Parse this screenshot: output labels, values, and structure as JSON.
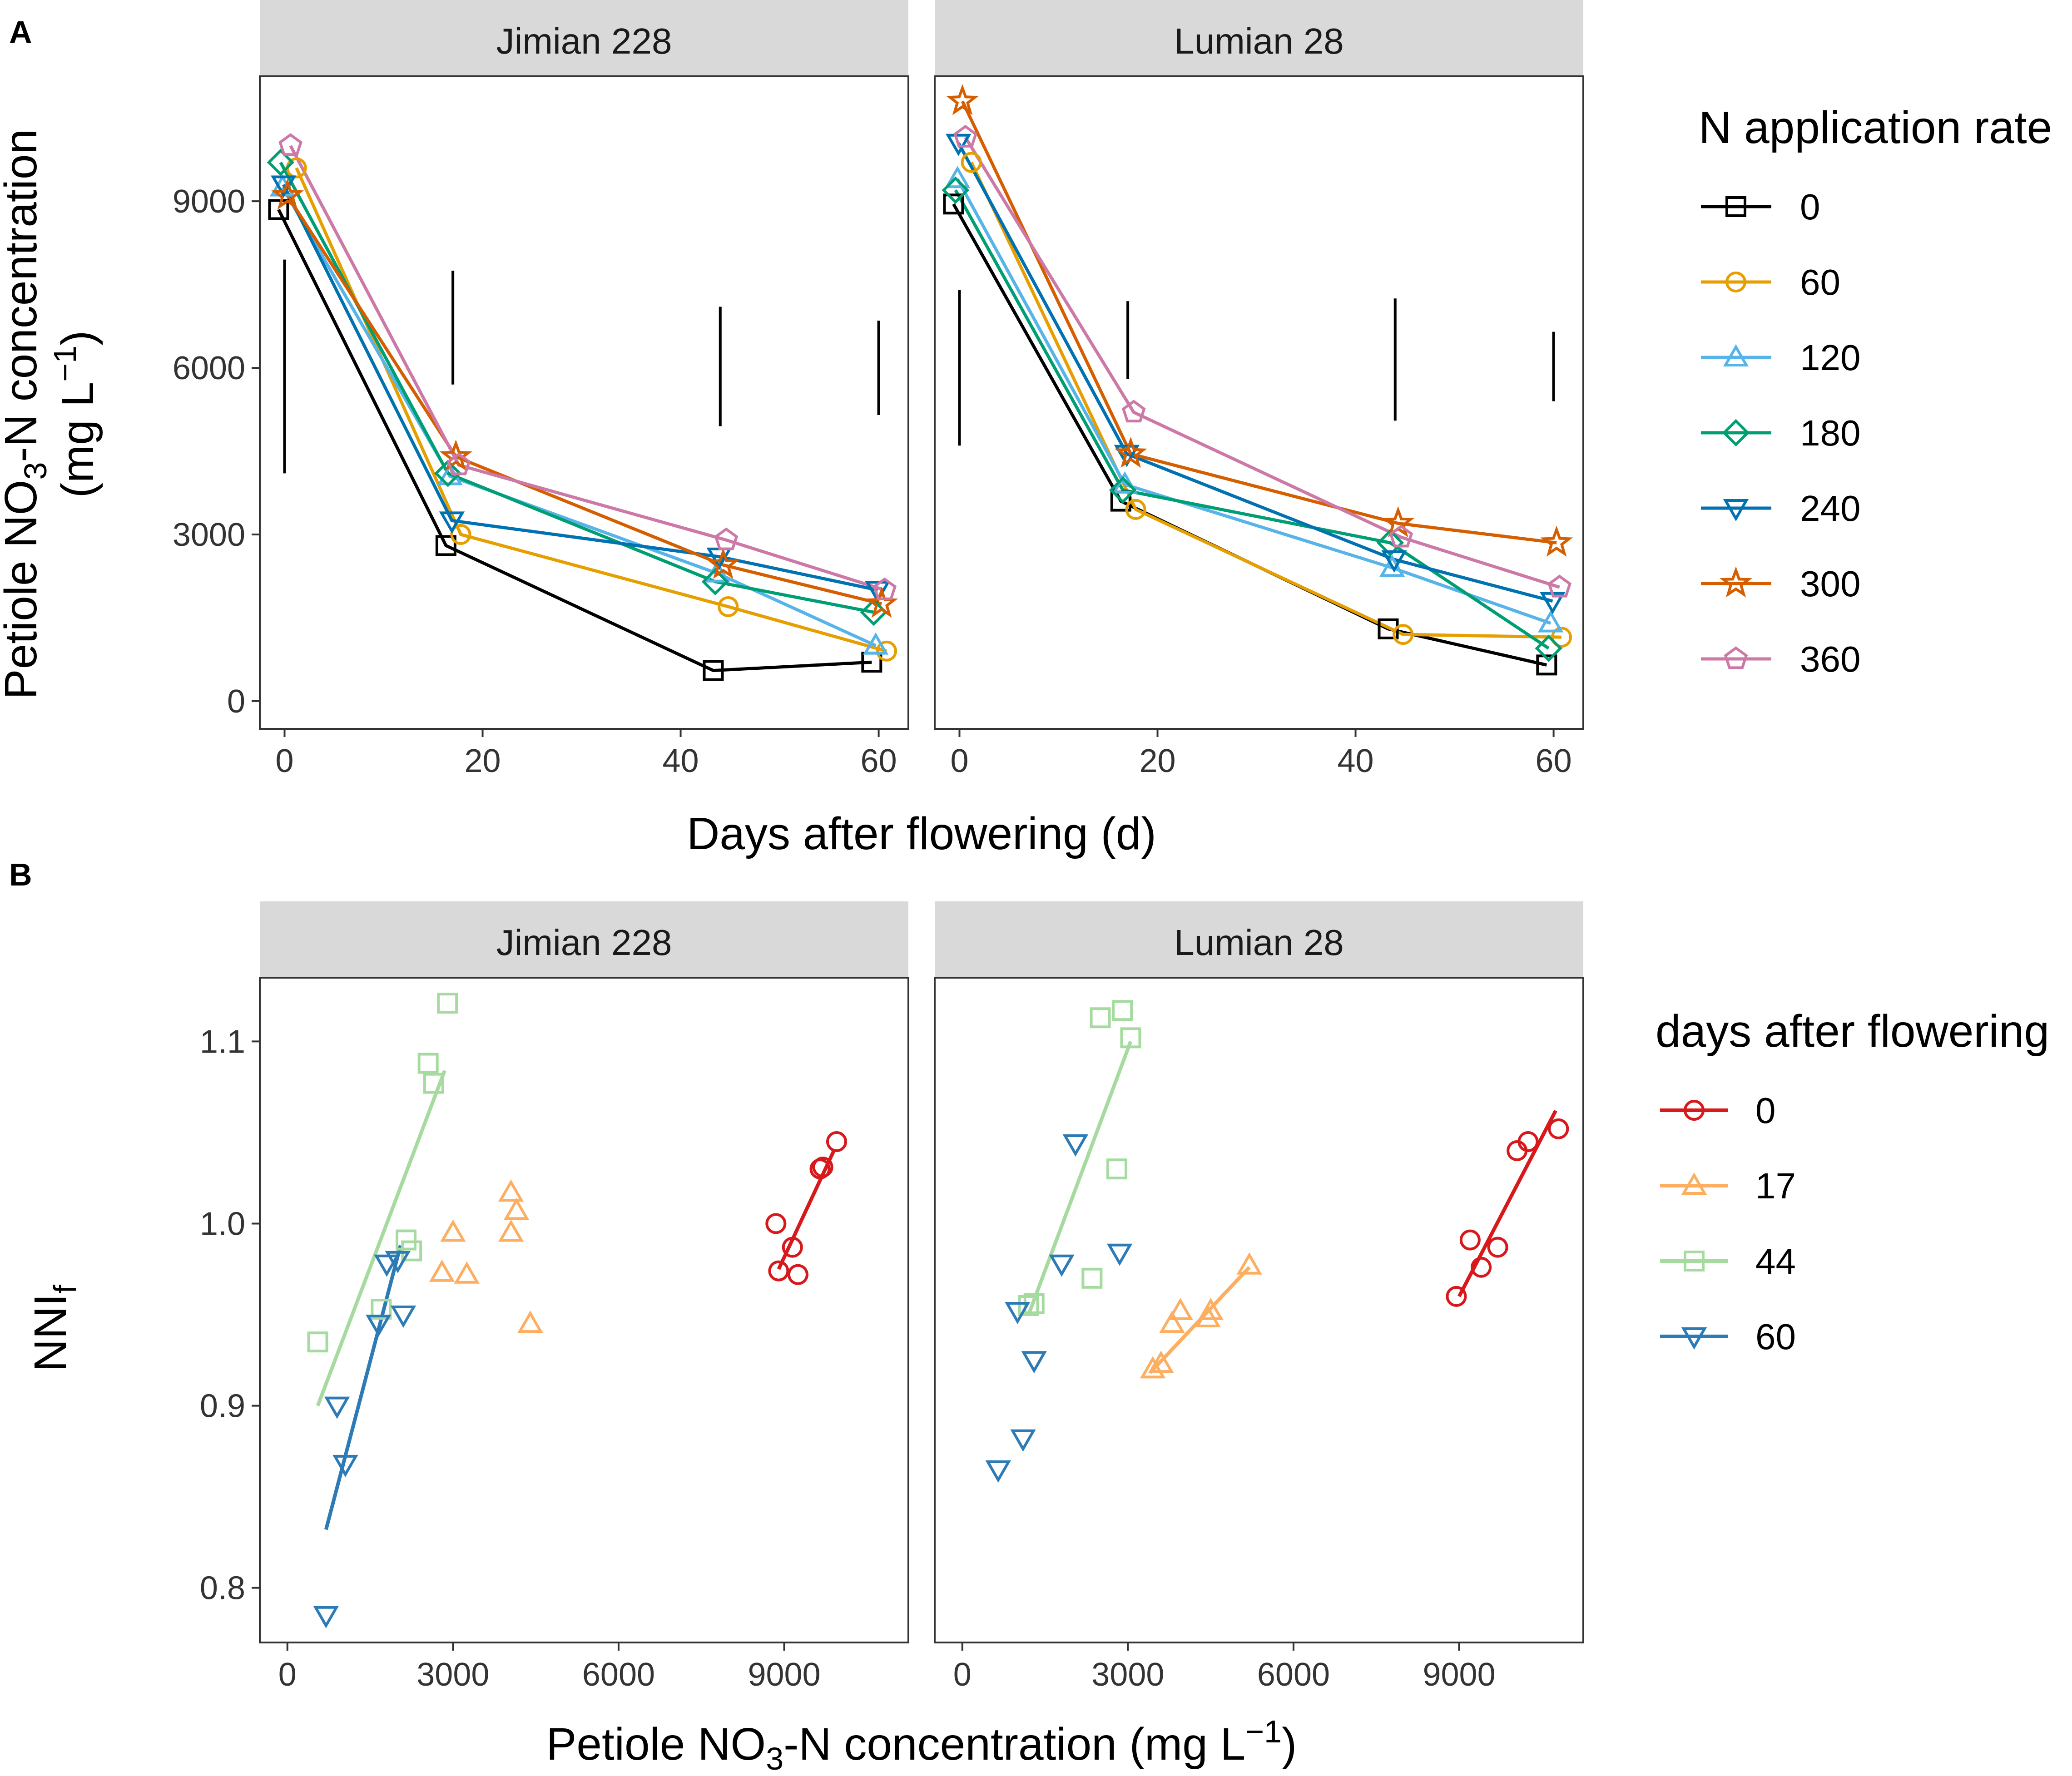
{
  "panels": {
    "a": {
      "letter": "A",
      "facets": [
        "Jimian 228",
        "Lumian 28"
      ],
      "y_title_main": "Petiole NO",
      "y_title_sub": "3",
      "y_title_rest": "-N concentration",
      "y_title_unit": "(mg L",
      "y_title_unit_sup": "−1",
      "y_title_unit_close": ")",
      "x_title": "Days after flowering (d)",
      "legend_title": "N application rate"
    },
    "b": {
      "letter": "B",
      "facets": [
        "Jimian 228",
        "Lumian 28"
      ],
      "y_title_main": "NNI",
      "y_title_sub": "f",
      "x_title_main": "Petiole NO",
      "x_title_sub": "3",
      "x_title_rest": "-N concentration (mg L",
      "x_title_sup": "−1",
      "x_title_close": ")",
      "legend_title": "days after flowering"
    }
  },
  "chart_data": [
    {
      "type": "line",
      "title": "",
      "xlabel": "Days after flowering (d)",
      "ylabel": "Petiole NO3-N concentration (mg L−1)",
      "xlim": [
        -2.5,
        63
      ],
      "ylim": [
        -500,
        11250
      ],
      "xticks": [
        0,
        20,
        40,
        60
      ],
      "yticks": [
        0,
        3000,
        6000,
        9000
      ],
      "legend_title": "N application rate",
      "facets": [
        {
          "name": "Jimian 228",
          "x": [
            0,
            17,
            44,
            60
          ],
          "error_bars": [
            {
              "x": 0,
              "low": 4100,
              "high": 7950
            },
            {
              "x": 17,
              "low": 5700,
              "high": 7750
            },
            {
              "x": 44,
              "low": 4950,
              "high": 7100
            },
            {
              "x": 60,
              "low": 5150,
              "high": 6850
            }
          ],
          "series": [
            {
              "name": "0",
              "color": "#000000",
              "shape": "square",
              "x": [
                -0.6,
                16.3,
                43.3,
                59.3
              ],
              "values": [
                8850,
                2800,
                550,
                700
              ]
            },
            {
              "name": "60",
              "color": "#E69F00",
              "shape": "circle",
              "x": [
                1.2,
                17.8,
                44.8,
                60.8
              ],
              "values": [
                9600,
                3000,
                1700,
                900
              ]
            },
            {
              "name": "120",
              "color": "#56B4E9",
              "shape": "triangle-up",
              "x": [
                -0.2,
                16.7,
                43.7,
                59.7
              ],
              "values": [
                9250,
                4050,
                2300,
                1000
              ]
            },
            {
              "name": "180",
              "color": "#009E73",
              "shape": "diamond",
              "x": [
                -0.4,
                16.5,
                43.5,
                59.5
              ],
              "values": [
                9700,
                4100,
                2150,
                1600
              ]
            },
            {
              "name": "240",
              "color": "#0072B2",
              "shape": "triangle-down",
              "x": [
                -0.1,
                16.9,
                43.9,
                59.9
              ],
              "values": [
                9300,
                3250,
                2600,
                2000
              ]
            },
            {
              "name": "300",
              "color": "#D55E00",
              "shape": "star",
              "x": [
                0.3,
                17.3,
                44.3,
                60.3
              ],
              "values": [
                9100,
                4400,
                2450,
                1750
              ]
            },
            {
              "name": "360",
              "color": "#CC79A7",
              "shape": "pentagon",
              "x": [
                0.6,
                17.6,
                44.6,
                60.6
              ],
              "values": [
                10000,
                4250,
                2900,
                2000
              ]
            }
          ]
        },
        {
          "name": "Lumian 28",
          "x": [
            0,
            17,
            44,
            60
          ],
          "error_bars": [
            {
              "x": 0,
              "low": 4600,
              "high": 7400
            },
            {
              "x": 17,
              "low": 5800,
              "high": 7200
            },
            {
              "x": 44,
              "low": 5050,
              "high": 7250
            },
            {
              "x": 60,
              "low": 5400,
              "high": 6650
            }
          ],
          "series": [
            {
              "name": "0",
              "color": "#000000",
              "shape": "square",
              "x": [
                -0.6,
                16.3,
                43.3,
                59.3
              ],
              "values": [
                8950,
                3600,
                1300,
                650
              ]
            },
            {
              "name": "60",
              "color": "#E69F00",
              "shape": "circle",
              "x": [
                1.2,
                17.8,
                44.8,
                60.8
              ],
              "values": [
                9700,
                3450,
                1200,
                1150
              ]
            },
            {
              "name": "120",
              "color": "#56B4E9",
              "shape": "triangle-up",
              "x": [
                -0.2,
                16.7,
                43.7,
                59.7
              ],
              "values": [
                9400,
                3900,
                2400,
                1400
              ]
            },
            {
              "name": "180",
              "color": "#009E73",
              "shape": "diamond",
              "x": [
                -0.4,
                16.5,
                43.5,
                59.5
              ],
              "values": [
                9200,
                3800,
                2850,
                950
              ]
            },
            {
              "name": "240",
              "color": "#0072B2",
              "shape": "triangle-down",
              "x": [
                -0.1,
                16.9,
                43.9,
                59.9
              ],
              "values": [
                10050,
                4450,
                2550,
                1800
              ]
            },
            {
              "name": "300",
              "color": "#D55E00",
              "shape": "star",
              "x": [
                0.3,
                17.3,
                44.3,
                60.3
              ],
              "values": [
                10800,
                4450,
                3200,
                2850
              ]
            },
            {
              "name": "360",
              "color": "#CC79A7",
              "shape": "pentagon",
              "x": [
                0.6,
                17.6,
                44.6,
                60.6
              ],
              "values": [
                10150,
                5200,
                2950,
                2050
              ]
            }
          ]
        }
      ]
    },
    {
      "type": "scatter",
      "title": "",
      "xlabel": "Petiole NO3-N concentration (mg L−1)",
      "ylabel": "NNIf",
      "xlim": [
        -500,
        11250
      ],
      "ylim": [
        0.77,
        1.135
      ],
      "xticks": [
        0,
        3000,
        6000,
        9000
      ],
      "yticks": [
        0.8,
        0.9,
        1.0,
        1.1
      ],
      "legend_title": "days after flowering",
      "facets": [
        {
          "name": "Jimian 228",
          "series": [
            {
              "name": "0",
              "color": "#D7191C",
              "shape": "circle",
              "x": [
                8850,
                8900,
                9250,
                9150,
                9650,
                9700,
                9950
              ],
              "y": [
                1.0,
                0.974,
                0.972,
                0.987,
                1.03,
                1.031,
                1.045
              ],
              "fit": {
                "x": [
                  8900,
                  9900
                ],
                "y": [
                  0.975,
                  1.04
                ]
              }
            },
            {
              "name": "17",
              "color": "#FDAE61",
              "shape": "triangle-up",
              "x": [
                2800,
                3000,
                3250,
                4050,
                4050,
                4150,
                4400
              ],
              "y": [
                0.973,
                0.995,
                0.972,
                1.017,
                0.995,
                1.007,
                0.945
              ],
              "fit": null
            },
            {
              "name": "44",
              "color": "#A6DBA0",
              "shape": "square",
              "x": [
                550,
                2150,
                2250,
                2550,
                2650,
                2900,
                1700
              ],
              "y": [
                0.935,
                0.991,
                0.985,
                1.088,
                1.077,
                1.121,
                0.953
              ],
              "fit": {
                "x": [
                  550,
                  2850
                ],
                "y": [
                  0.9,
                  1.084
                ]
              }
            },
            {
              "name": "60",
              "color": "#2C7BB6",
              "shape": "triangle-down",
              "x": [
                700,
                900,
                1050,
                1650,
                1800,
                2000,
                2100
              ],
              "y": [
                0.785,
                0.9,
                0.868,
                0.945,
                0.978,
                0.98,
                0.95
              ],
              "fit": {
                "x": [
                  700,
                  2050
                ],
                "y": [
                  0.832,
                  0.988
                ]
              }
            }
          ]
        },
        {
          "name": "Lumian 28",
          "series": [
            {
              "name": "0",
              "color": "#D7191C",
              "shape": "circle",
              "x": [
                8950,
                9200,
                9400,
                9700,
                10050,
                10250,
                10800
              ],
              "y": [
                0.96,
                0.991,
                0.976,
                0.987,
                1.04,
                1.045,
                1.052
              ],
              "fit": {
                "x": [
                  9000,
                  10750
                ],
                "y": [
                  0.96,
                  1.062
                ]
              }
            },
            {
              "name": "17",
              "color": "#FDAE61",
              "shape": "triangle-up",
              "x": [
                3450,
                3600,
                3800,
                3950,
                4450,
                4500,
                5200
              ],
              "y": [
                0.92,
                0.923,
                0.945,
                0.952,
                0.948,
                0.952,
                0.977
              ],
              "fit": {
                "x": [
                  3400,
                  5200
                ],
                "y": [
                  0.918,
                  0.976
                ]
              }
            },
            {
              "name": "44",
              "color": "#A6DBA0",
              "shape": "square",
              "x": [
                1200,
                2350,
                2500,
                2800,
                2900,
                3050,
                1300
              ],
              "y": [
                0.955,
                0.97,
                1.113,
                1.03,
                1.117,
                1.102,
                0.956
              ],
              "fit": {
                "x": [
                  1200,
                  3050
                ],
                "y": [
                  0.95,
                  1.1
                ]
              }
            },
            {
              "name": "60",
              "color": "#2C7BB6",
              "shape": "triangle-down",
              "x": [
                650,
                1000,
                1100,
                1300,
                1800,
                2050,
                2850
              ],
              "y": [
                0.865,
                0.952,
                0.882,
                0.925,
                0.978,
                1.044,
                0.984
              ],
              "fit": null
            }
          ]
        }
      ]
    }
  ]
}
